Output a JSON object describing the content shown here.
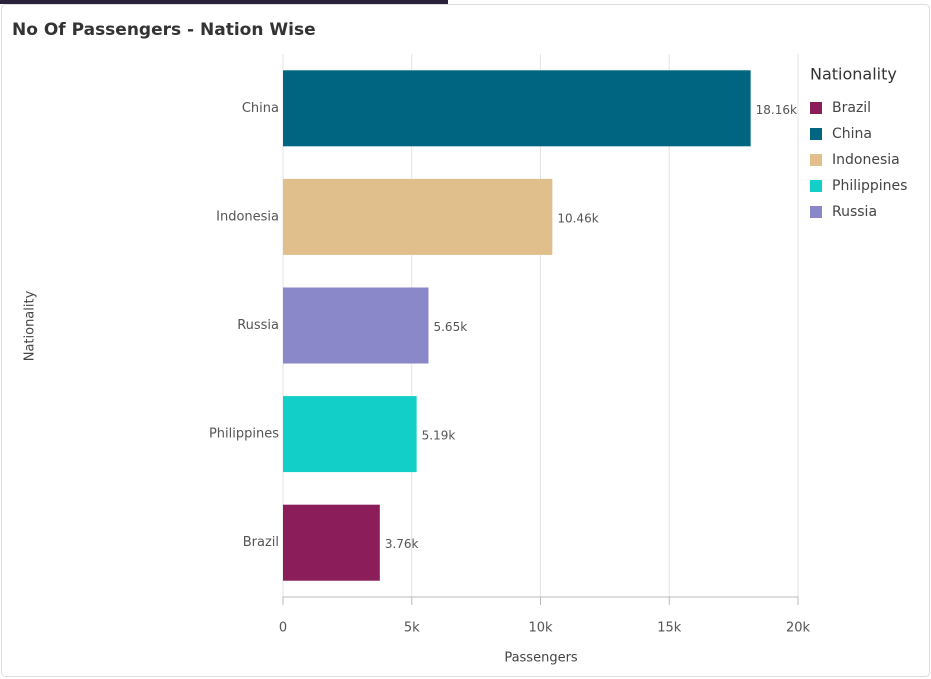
{
  "chart_data": {
    "type": "hbar",
    "title": "No Of Passengers - Nation Wise",
    "y_label": "Nationality",
    "x_label": "Passengers",
    "categories": [
      "China",
      "Indonesia",
      "Russia",
      "Philippines",
      "Brazil"
    ],
    "values": [
      18160,
      10460,
      5650,
      5190,
      3760
    ],
    "value_labels": [
      "18.16k",
      "10.46k",
      "5.65k",
      "5.19k",
      "3.76k"
    ],
    "colors": [
      "#006580",
      "#e0bf8c",
      "#8b88c9",
      "#12d0c8",
      "#8b1e5a"
    ],
    "xlim": [
      0,
      20000
    ],
    "xticks": [
      0,
      {
        "value": 5000,
        "label": "5k"
      },
      {
        "value": 10000,
        "label": "10k"
      },
      {
        "value": 15000,
        "label": "15k"
      },
      {
        "value": 20000,
        "label": "20k"
      }
    ],
    "grid": true,
    "legend": {
      "title": "Nationality",
      "position": "right",
      "items": [
        {
          "name": "Brazil",
          "color": "#8b1e5a"
        },
        {
          "name": "China",
          "color": "#006580"
        },
        {
          "name": "Indonesia",
          "color": "#e0bf8c"
        },
        {
          "name": "Philippines",
          "color": "#12d0c8"
        },
        {
          "name": "Russia",
          "color": "#8b88c9"
        }
      ]
    }
  }
}
